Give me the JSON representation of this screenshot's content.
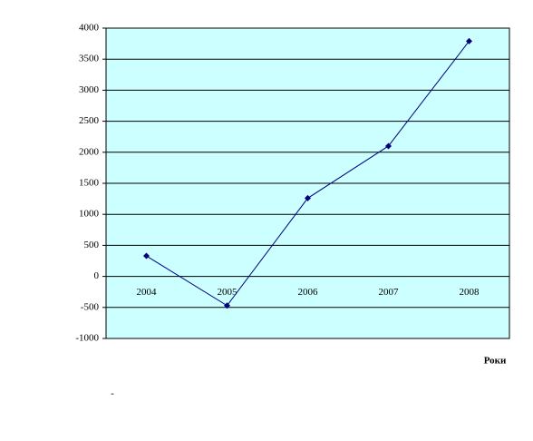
{
  "chart_data": {
    "type": "line",
    "categories": [
      "2004",
      "2005",
      "2006",
      "2007",
      "2008"
    ],
    "values": [
      330,
      -470,
      1260,
      2100,
      3790
    ],
    "color": "#000080",
    "ylim": [
      -1000,
      4000
    ],
    "yticks": [
      -1000,
      -500,
      0,
      500,
      1000,
      1500,
      2000,
      2500,
      3000,
      3500,
      4000
    ],
    "grid": true,
    "x_label": "Роки",
    "annotation": "-"
  }
}
